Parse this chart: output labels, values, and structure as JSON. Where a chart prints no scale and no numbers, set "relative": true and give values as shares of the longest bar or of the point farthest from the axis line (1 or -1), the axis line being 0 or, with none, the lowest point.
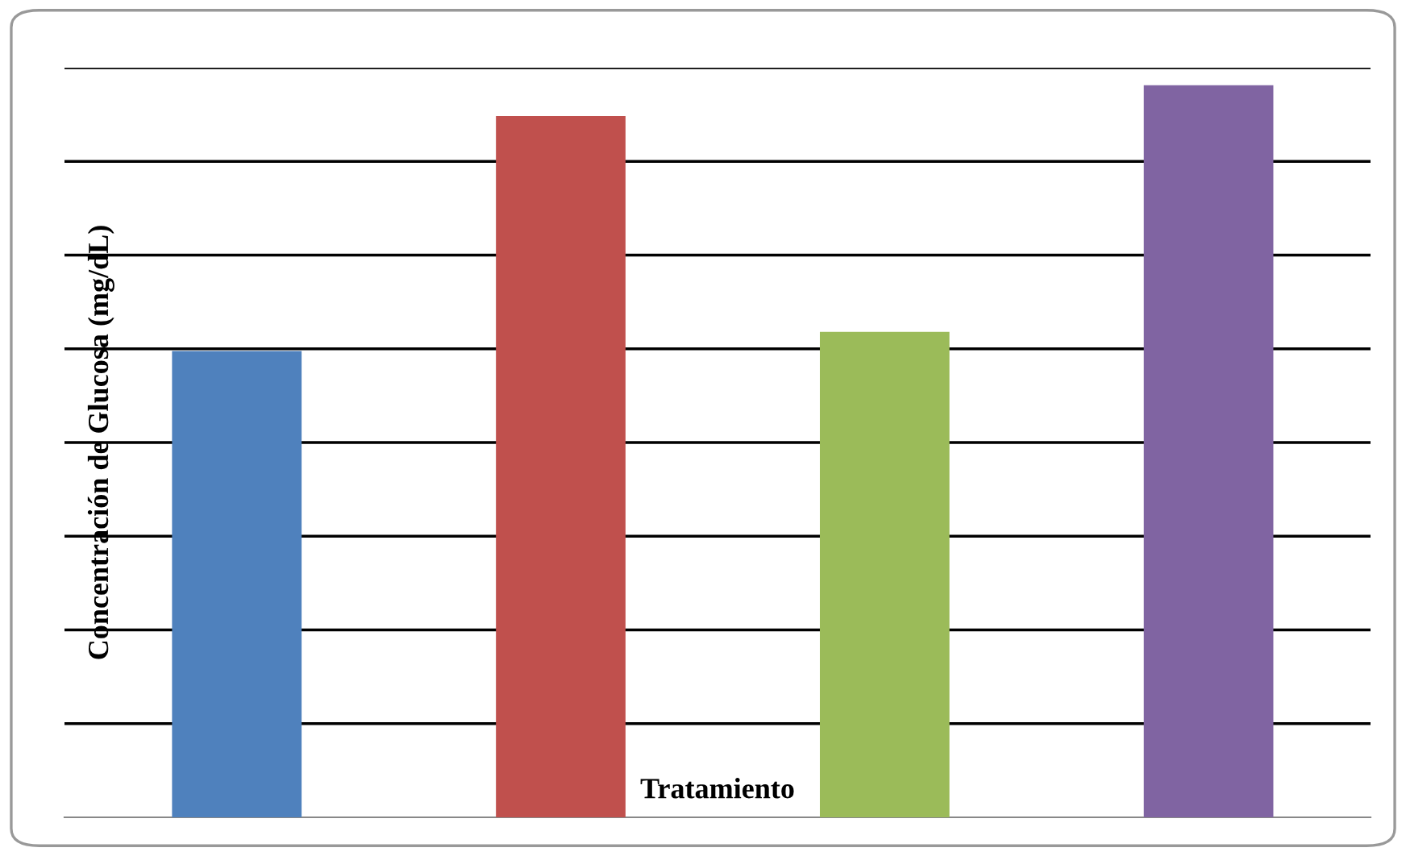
{
  "chart_data": {
    "type": "bar",
    "relative": true,
    "xlabel": "Tratamiento",
    "ylabel": "Concentración de Glucosa (mg/dL)",
    "categories": [
      null,
      null,
      null,
      null
    ],
    "values": [
      0.637,
      0.958,
      0.663,
      1
    ],
    "colors": [
      "#4f81bd",
      "#c0504d",
      "#9bbb59",
      "#8064a2"
    ],
    "grid": "y"
  }
}
